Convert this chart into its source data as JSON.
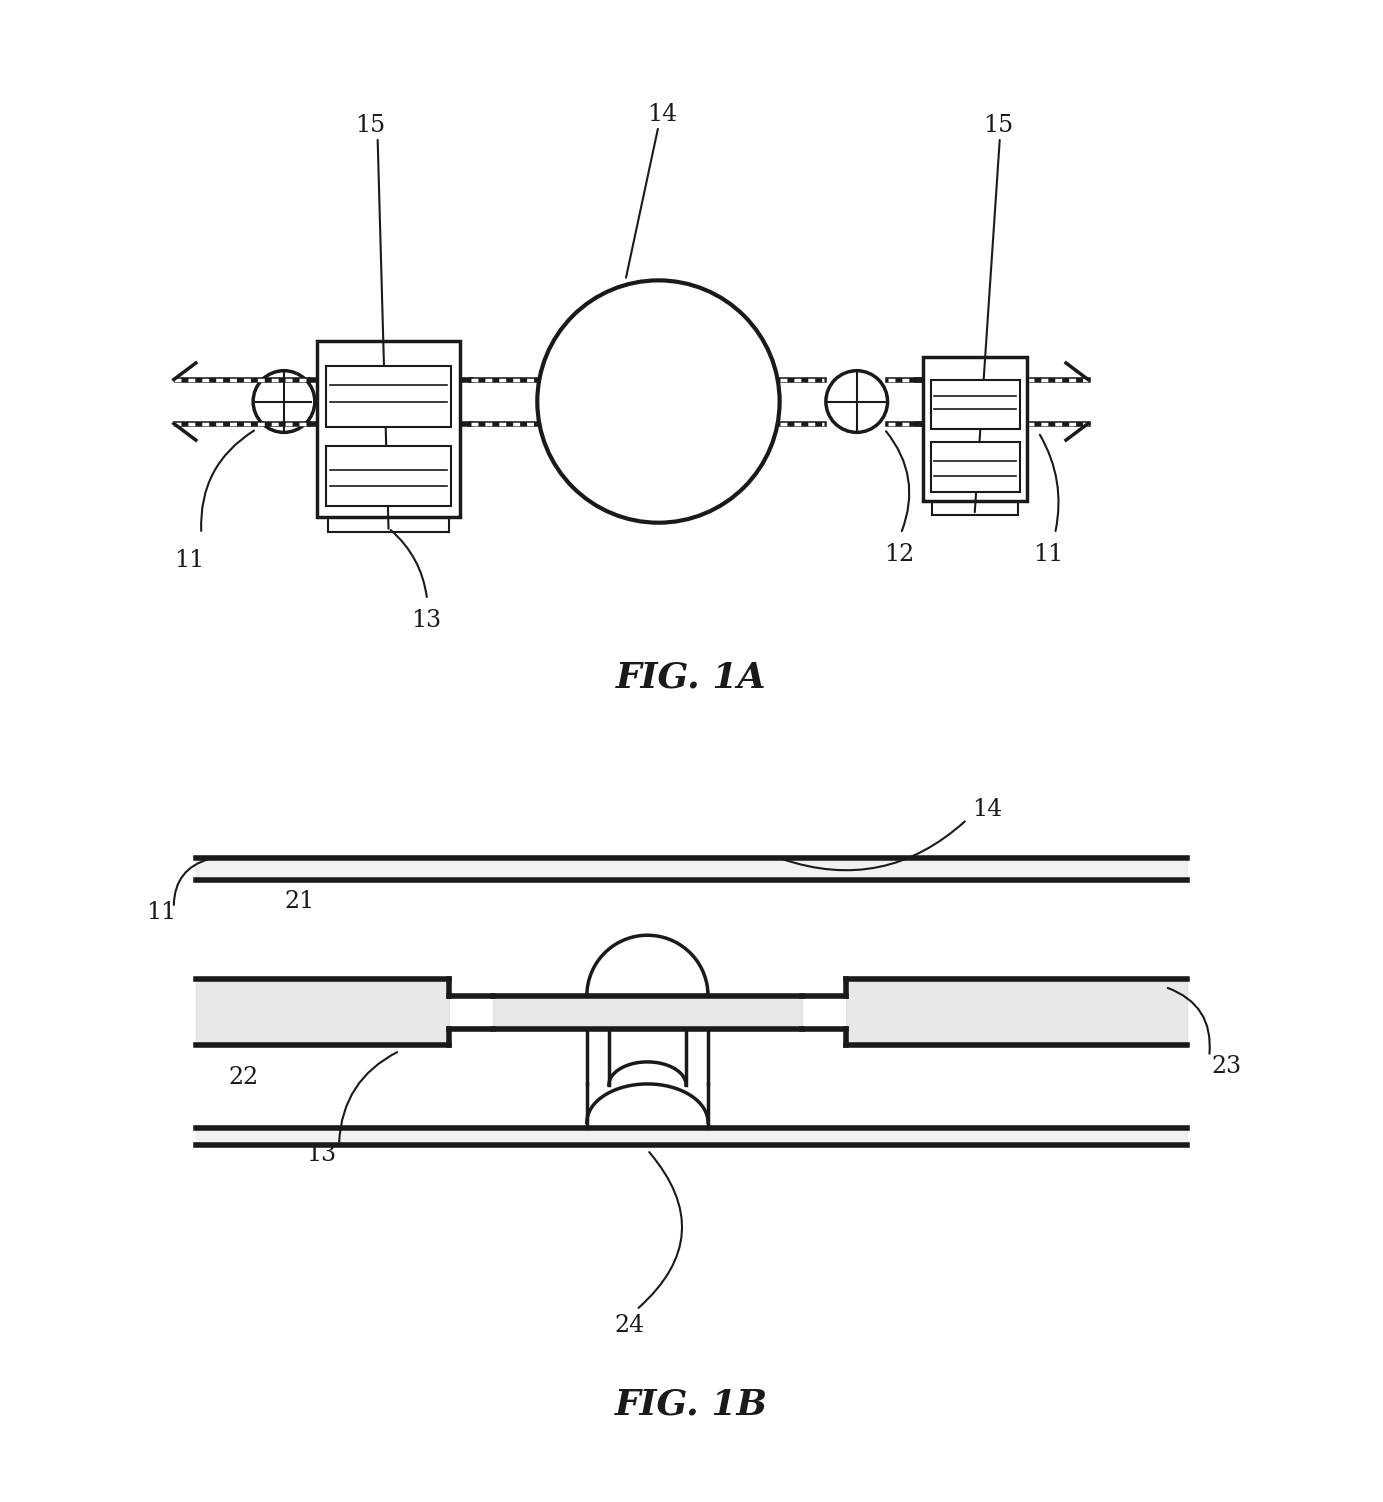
{
  "fig_title_1": "FIG. 1A",
  "fig_title_2": "FIG. 1B",
  "bg_color": "#ffffff",
  "line_color": "#1a1a1a",
  "lw_thin": 1.5,
  "lw_med": 2.5,
  "lw_thick": 4.0,
  "label_fontsize": 17,
  "title_fontsize": 26
}
